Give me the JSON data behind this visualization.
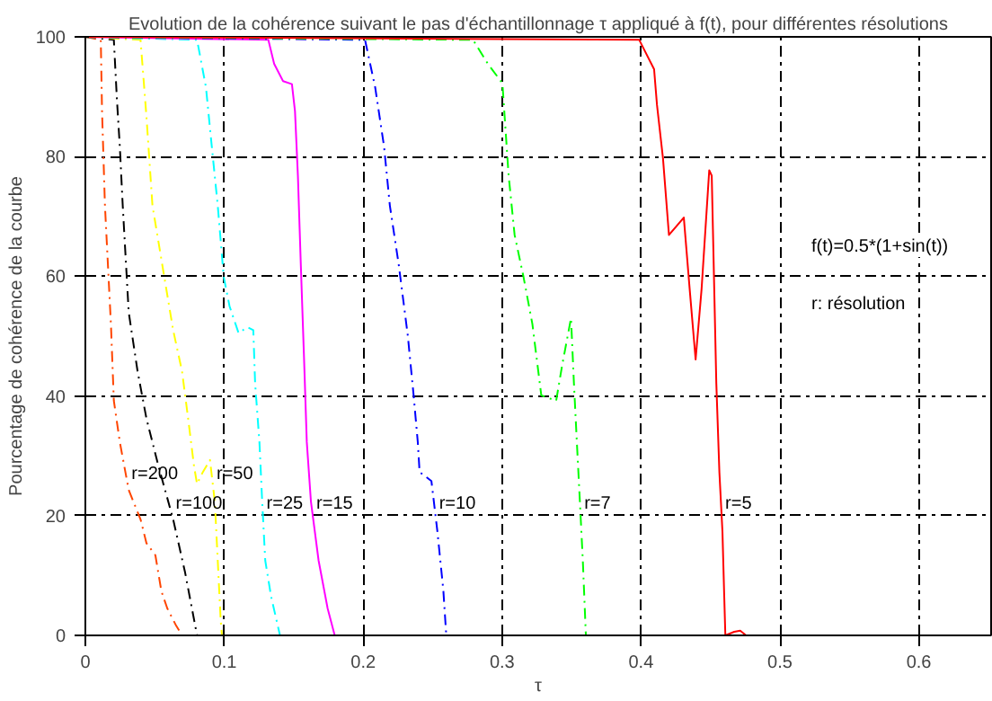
{
  "chart_data": {
    "type": "line",
    "title": "Evolution de la cohérence suivant le pas d'échantillonnage τ appliqué à f(t), pour différentes résolutions",
    "xlabel": "τ",
    "ylabel": "Pourcentage de cohérence de la courbe",
    "xlim": [
      0,
      0.652
    ],
    "ylim": [
      0,
      100
    ],
    "xticks": [
      0,
      0.1,
      0.2,
      0.3,
      0.4,
      0.5,
      0.6
    ],
    "yticks": [
      0,
      20,
      40,
      60,
      80,
      100
    ],
    "grid": true,
    "series": [
      {
        "name": "r=200",
        "color": "#ff4500",
        "line_style": "dashed",
        "x": [
          0,
          0.0111,
          0.012,
          0.0141,
          0.0184,
          0.0205,
          0.0248,
          0.0312,
          0.0397,
          0.044,
          0.0504,
          0.0547,
          0.059,
          0.0654,
          0.0697
        ],
        "values": [
          100,
          99.5,
          87.6,
          71.8,
          52.0,
          39.2,
          32.3,
          24.3,
          19.4,
          15.4,
          13.4,
          7.4,
          4.5,
          1.6,
          0
        ]
      },
      {
        "name": "r=100",
        "color": "#000000",
        "line_style": "dashed",
        "x": [
          0,
          0.0205,
          0.0227,
          0.0248,
          0.0269,
          0.0312,
          0.0376,
          0.044,
          0.0526,
          0.0632,
          0.0718,
          0.0804
        ],
        "values": [
          100,
          99.5,
          89.6,
          81.7,
          71.8,
          54.0,
          44.1,
          36.2,
          28.3,
          19.4,
          10.5,
          0
        ]
      },
      {
        "name": "r=50",
        "color": "#ffff00",
        "line_style": "dashed",
        "x": [
          0,
          0.0397,
          0.044,
          0.0483,
          0.0568,
          0.0632,
          0.0696,
          0.074,
          0.0782,
          0.0804,
          0.0846,
          0.0897,
          0.0932,
          0.0953,
          0.0974,
          0.0983
        ],
        "values": [
          100,
          99.5,
          86.6,
          71.8,
          59.9,
          51.0,
          44.1,
          36.2,
          28.3,
          25.3,
          27.3,
          29.3,
          22.3,
          12.5,
          2.6,
          0
        ]
      },
      {
        "name": "r=25",
        "color": "#00ffff",
        "line_style": "dashed",
        "x": [
          0,
          0.0804,
          0.0868,
          0.091,
          0.0953,
          0.0996,
          0.1038,
          0.1103,
          0.1167,
          0.1209,
          0.1222,
          0.1253,
          0.1273,
          0.1295,
          0.1337,
          0.1401
        ],
        "values": [
          100,
          99.5,
          91.6,
          81.7,
          71.8,
          59.9,
          55.0,
          50.5,
          51.5,
          51.0,
          42.1,
          32.3,
          22.3,
          12.5,
          6.5,
          0
        ]
      },
      {
        "name": "r=15",
        "color": "#ff00ff",
        "line_style": "solid",
        "x": [
          0,
          0.1317,
          0.1359,
          0.1423,
          0.1487,
          0.1509,
          0.153,
          0.1551,
          0.1573,
          0.1594,
          0.1624,
          0.1679,
          0.1744,
          0.1795
        ],
        "values": [
          100,
          99.5,
          95.5,
          92.6,
          92.1,
          87.6,
          76.8,
          61.9,
          47.1,
          32.3,
          22.3,
          12.5,
          4.5,
          0
        ]
      },
      {
        "name": "r=10",
        "color": "#0000ff",
        "line_style": "dashed",
        "x": [
          0,
          0.2013,
          0.2086,
          0.215,
          0.2192,
          0.2256,
          0.2321,
          0.2363,
          0.2393,
          0.2406,
          0.2491,
          0.2534,
          0.2577,
          0.2598
        ],
        "values": [
          100,
          99.5,
          91.6,
          81.7,
          71.8,
          61.9,
          50.1,
          40.1,
          32.3,
          27.3,
          25.8,
          17.4,
          7.5,
          0
        ]
      },
      {
        "name": "r=7",
        "color": "#00ff00",
        "line_style": "dashed",
        "x": [
          0,
          0.2791,
          0.2897,
          0.2991,
          0.3004,
          0.3047,
          0.309,
          0.3154,
          0.3218,
          0.3282,
          0.3389,
          0.3432,
          0.3496,
          0.3517,
          0.3538,
          0.356,
          0.3581,
          0.3603
        ],
        "values": [
          100,
          99.5,
          95.5,
          92.6,
          91.6,
          76.8,
          66.9,
          59.9,
          52.0,
          40.1,
          39.2,
          45.1,
          53.0,
          42.1,
          32.3,
          22.3,
          12.5,
          0
        ]
      },
      {
        "name": "r=5",
        "color": "#ff0000",
        "line_style": "solid",
        "x": [
          0,
          0.3987,
          0.4094,
          0.4115,
          0.4158,
          0.4201,
          0.4308,
          0.435,
          0.4393,
          0.4436,
          0.4491,
          0.4509,
          0.4542,
          0.4564,
          0.4586,
          0.4599,
          0.4607,
          0.4671,
          0.4714,
          0.4756
        ],
        "values": [
          100,
          99.5,
          94.6,
          88.6,
          79.7,
          66.9,
          69.8,
          57.9,
          46.1,
          57.9,
          77.7,
          76.8,
          42.1,
          27.3,
          17.4,
          6.5,
          0,
          0.6,
          0.8,
          0
        ]
      }
    ],
    "annotations": [
      "f(t)=0.5*(1+sin(t))",
      "r: résolution"
    ]
  }
}
